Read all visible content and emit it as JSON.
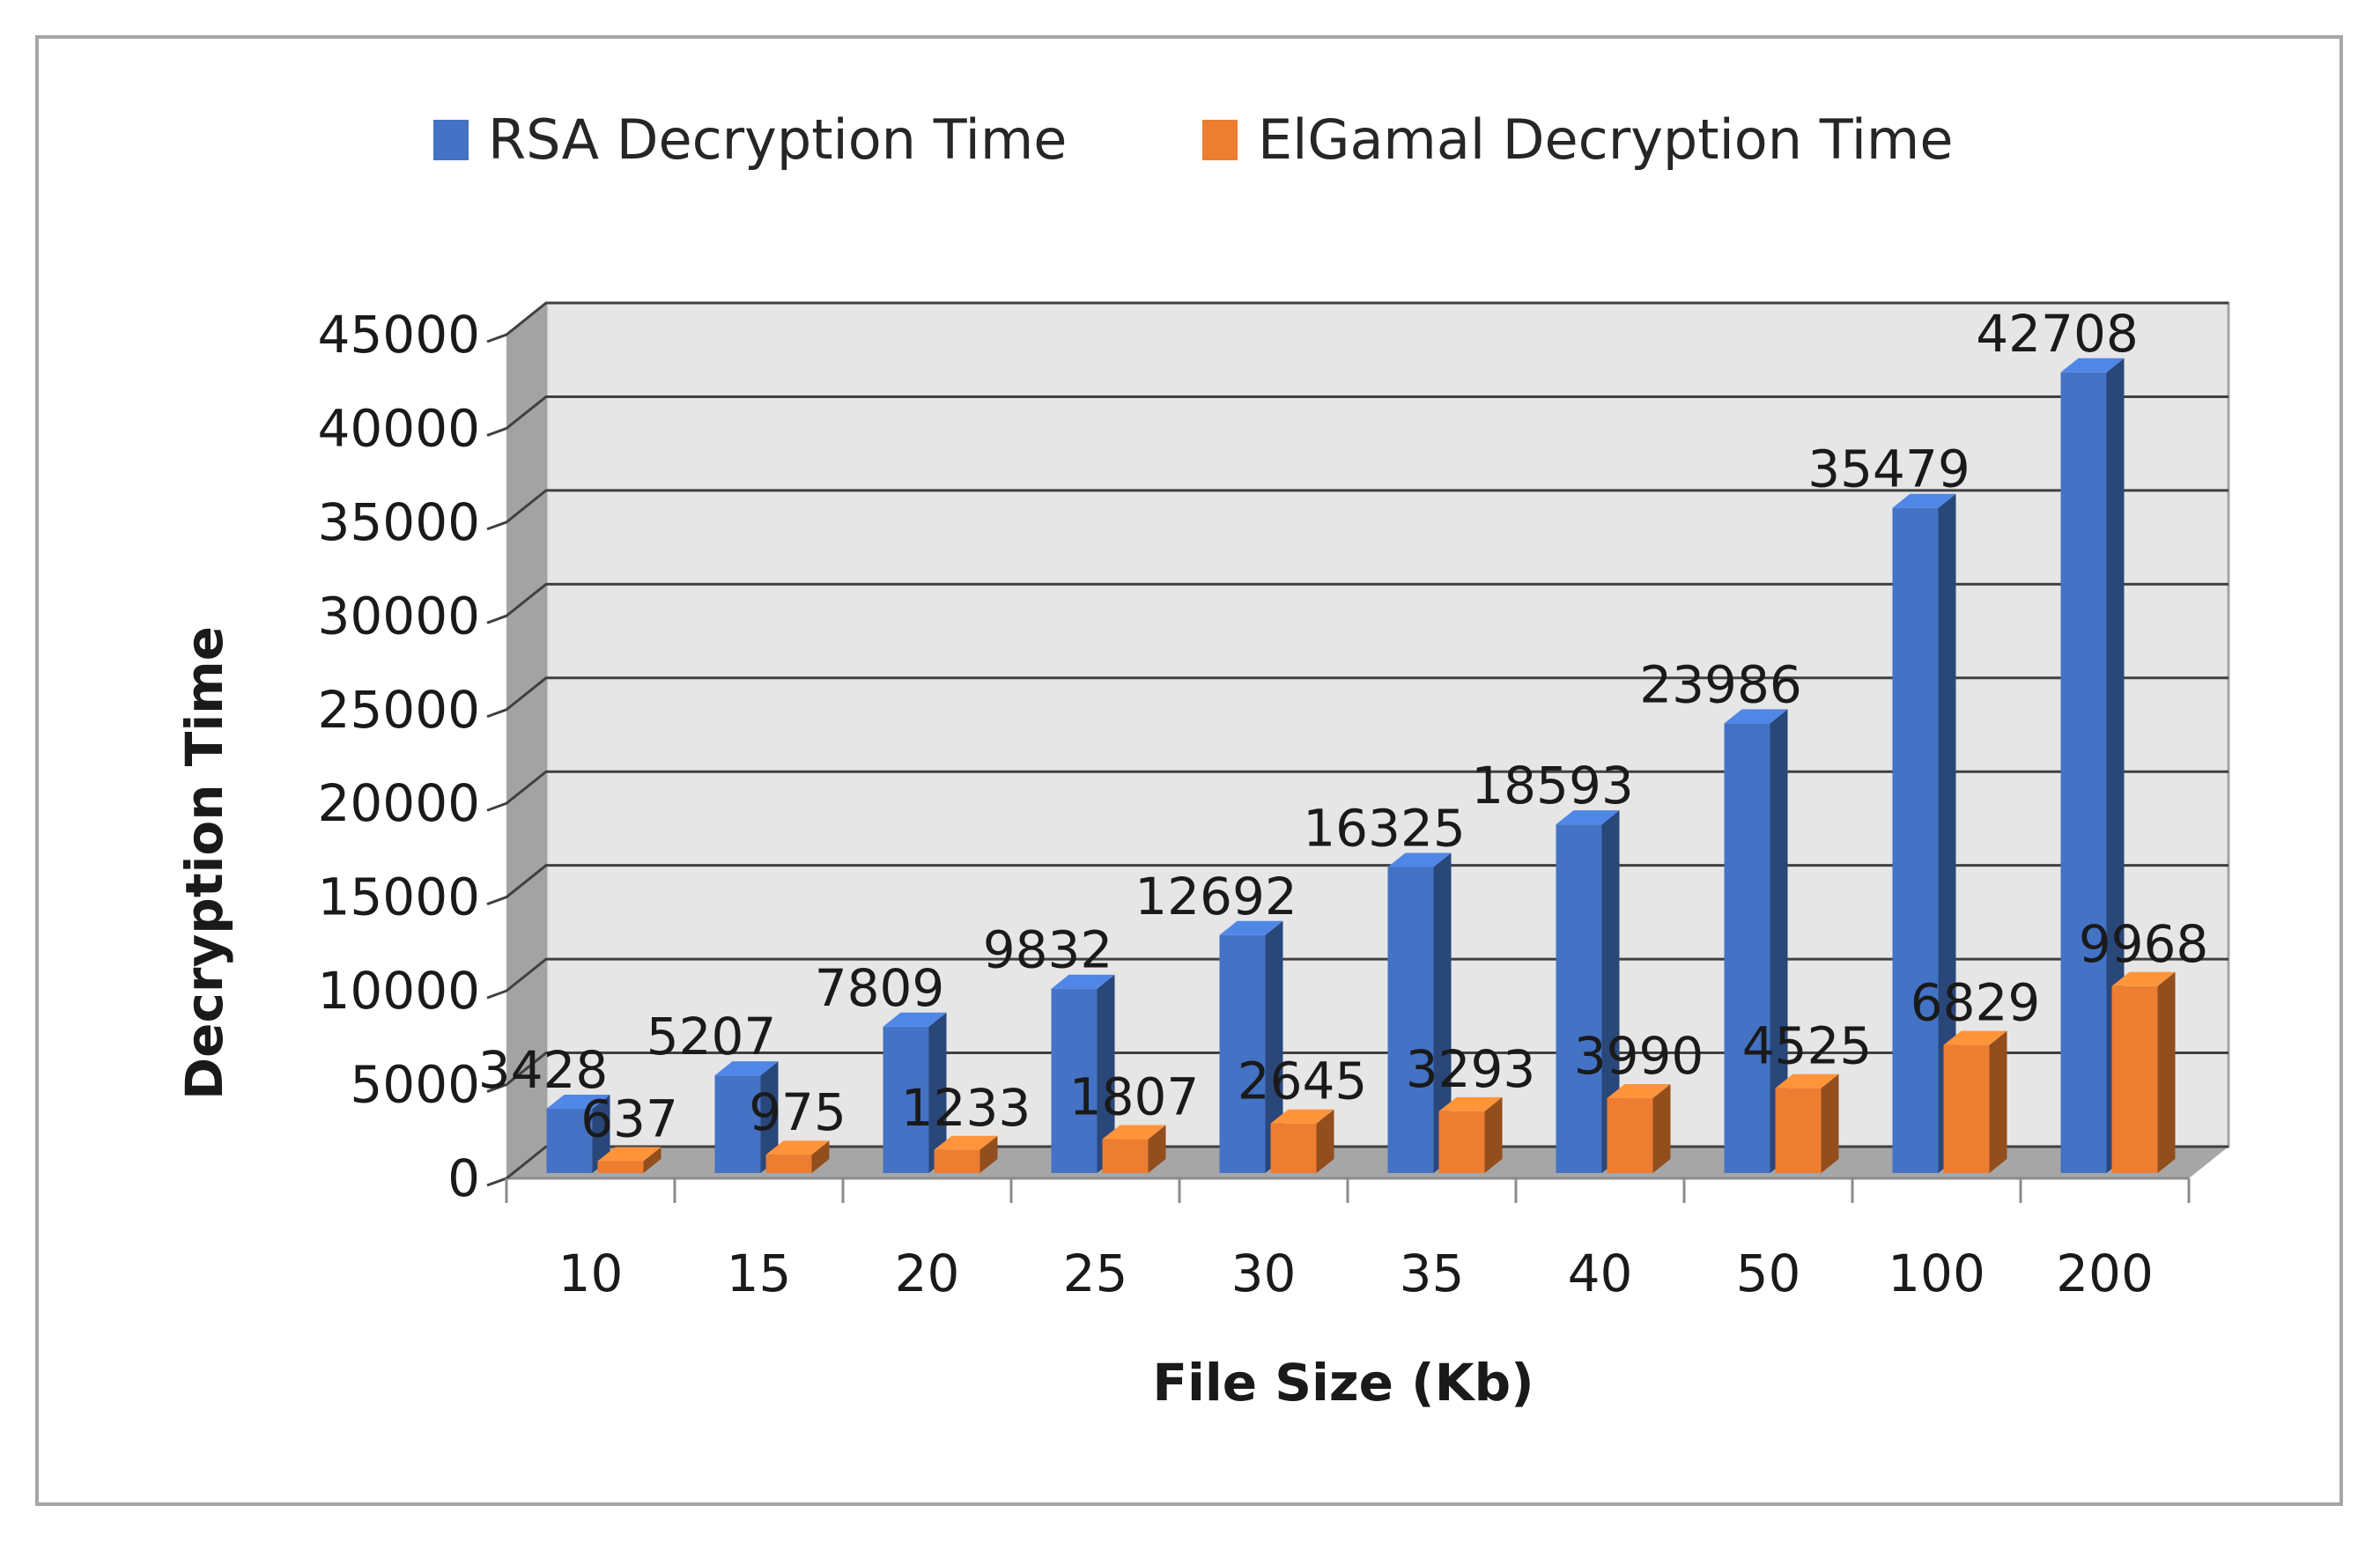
{
  "chart_data": {
    "type": "bar",
    "title": "",
    "xlabel": "File Size (Kb)",
    "ylabel": "Decryption Time",
    "categories": [
      "10",
      "15",
      "20",
      "25",
      "30",
      "35",
      "40",
      "50",
      "100",
      "200"
    ],
    "series": [
      {
        "name": "RSA Decryption Time",
        "color": "#4472c4",
        "values": [
          3428,
          5207,
          7809,
          9832,
          12692,
          16325,
          18593,
          23986,
          35479,
          42708
        ]
      },
      {
        "name": "ElGamal Decryption Time",
        "color": "#ed7d31",
        "values": [
          637,
          975,
          1233,
          1807,
          2645,
          3293,
          3990,
          4525,
          6829,
          9968
        ]
      }
    ],
    "ylim": [
      0,
      45000
    ],
    "yticks": [
      "0",
      "5000",
      "10000",
      "15000",
      "20000",
      "25000",
      "30000",
      "35000",
      "40000",
      "45000"
    ],
    "grid": true,
    "legend": "top",
    "style": "3d-clustered-bar"
  }
}
